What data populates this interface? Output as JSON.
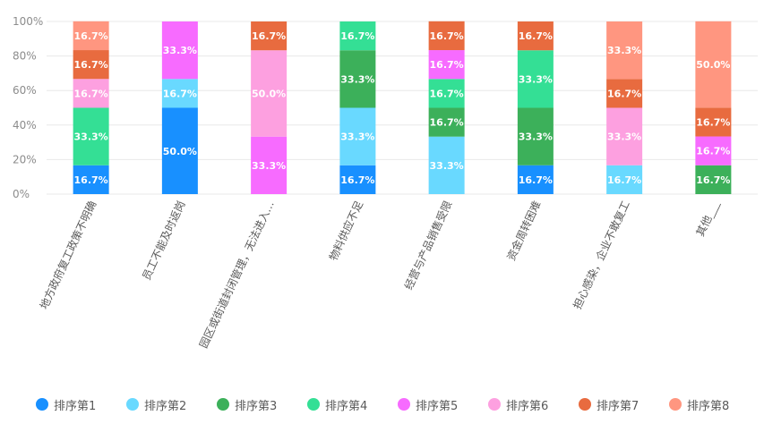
{
  "chart_data": {
    "type": "bar",
    "stacked": true,
    "normalized": true,
    "ylim": [
      0,
      100
    ],
    "yticks": [
      "0%",
      "20%",
      "40%",
      "60%",
      "80%",
      "100%"
    ],
    "grid": true,
    "legend_position": "bottom",
    "categories": [
      "地方政府复工政策不明确",
      "员工不能及时返岗",
      "园区或街道封闭管理，无法进入…",
      "物料供应不足",
      "经营与产品销售受限",
      "资金周转困难",
      "担心感染，企业不敢复工",
      "其他___"
    ],
    "series": [
      {
        "name": "排序第1",
        "color": "#1890ff",
        "values": [
          16.7,
          50.0,
          0,
          16.7,
          0,
          16.7,
          0,
          0
        ]
      },
      {
        "name": "排序第2",
        "color": "#69d9ff",
        "values": [
          0,
          16.7,
          0,
          33.3,
          33.3,
          0,
          16.7,
          0
        ]
      },
      {
        "name": "排序第3",
        "color": "#3cb05a",
        "values": [
          0,
          0,
          0,
          33.3,
          16.7,
          33.3,
          0,
          16.7
        ]
      },
      {
        "name": "排序第4",
        "color": "#34df95",
        "values": [
          33.3,
          0,
          0,
          16.7,
          16.7,
          33.3,
          0,
          0
        ]
      },
      {
        "name": "排序第5",
        "color": "#f76bff",
        "values": [
          0,
          33.3,
          33.3,
          0,
          16.7,
          0,
          0,
          16.7
        ]
      },
      {
        "name": "排序第6",
        "color": "#fda0e0",
        "values": [
          16.7,
          0,
          50.0,
          0,
          0,
          0,
          33.3,
          0
        ]
      },
      {
        "name": "排序第7",
        "color": "#e86b3f",
        "values": [
          16.7,
          0,
          16.7,
          0,
          16.7,
          16.7,
          16.7,
          16.7
        ]
      },
      {
        "name": "排序第8",
        "color": "#ff9680",
        "values": [
          16.7,
          0,
          0,
          0,
          0,
          0,
          33.3,
          50.0
        ]
      }
    ]
  }
}
